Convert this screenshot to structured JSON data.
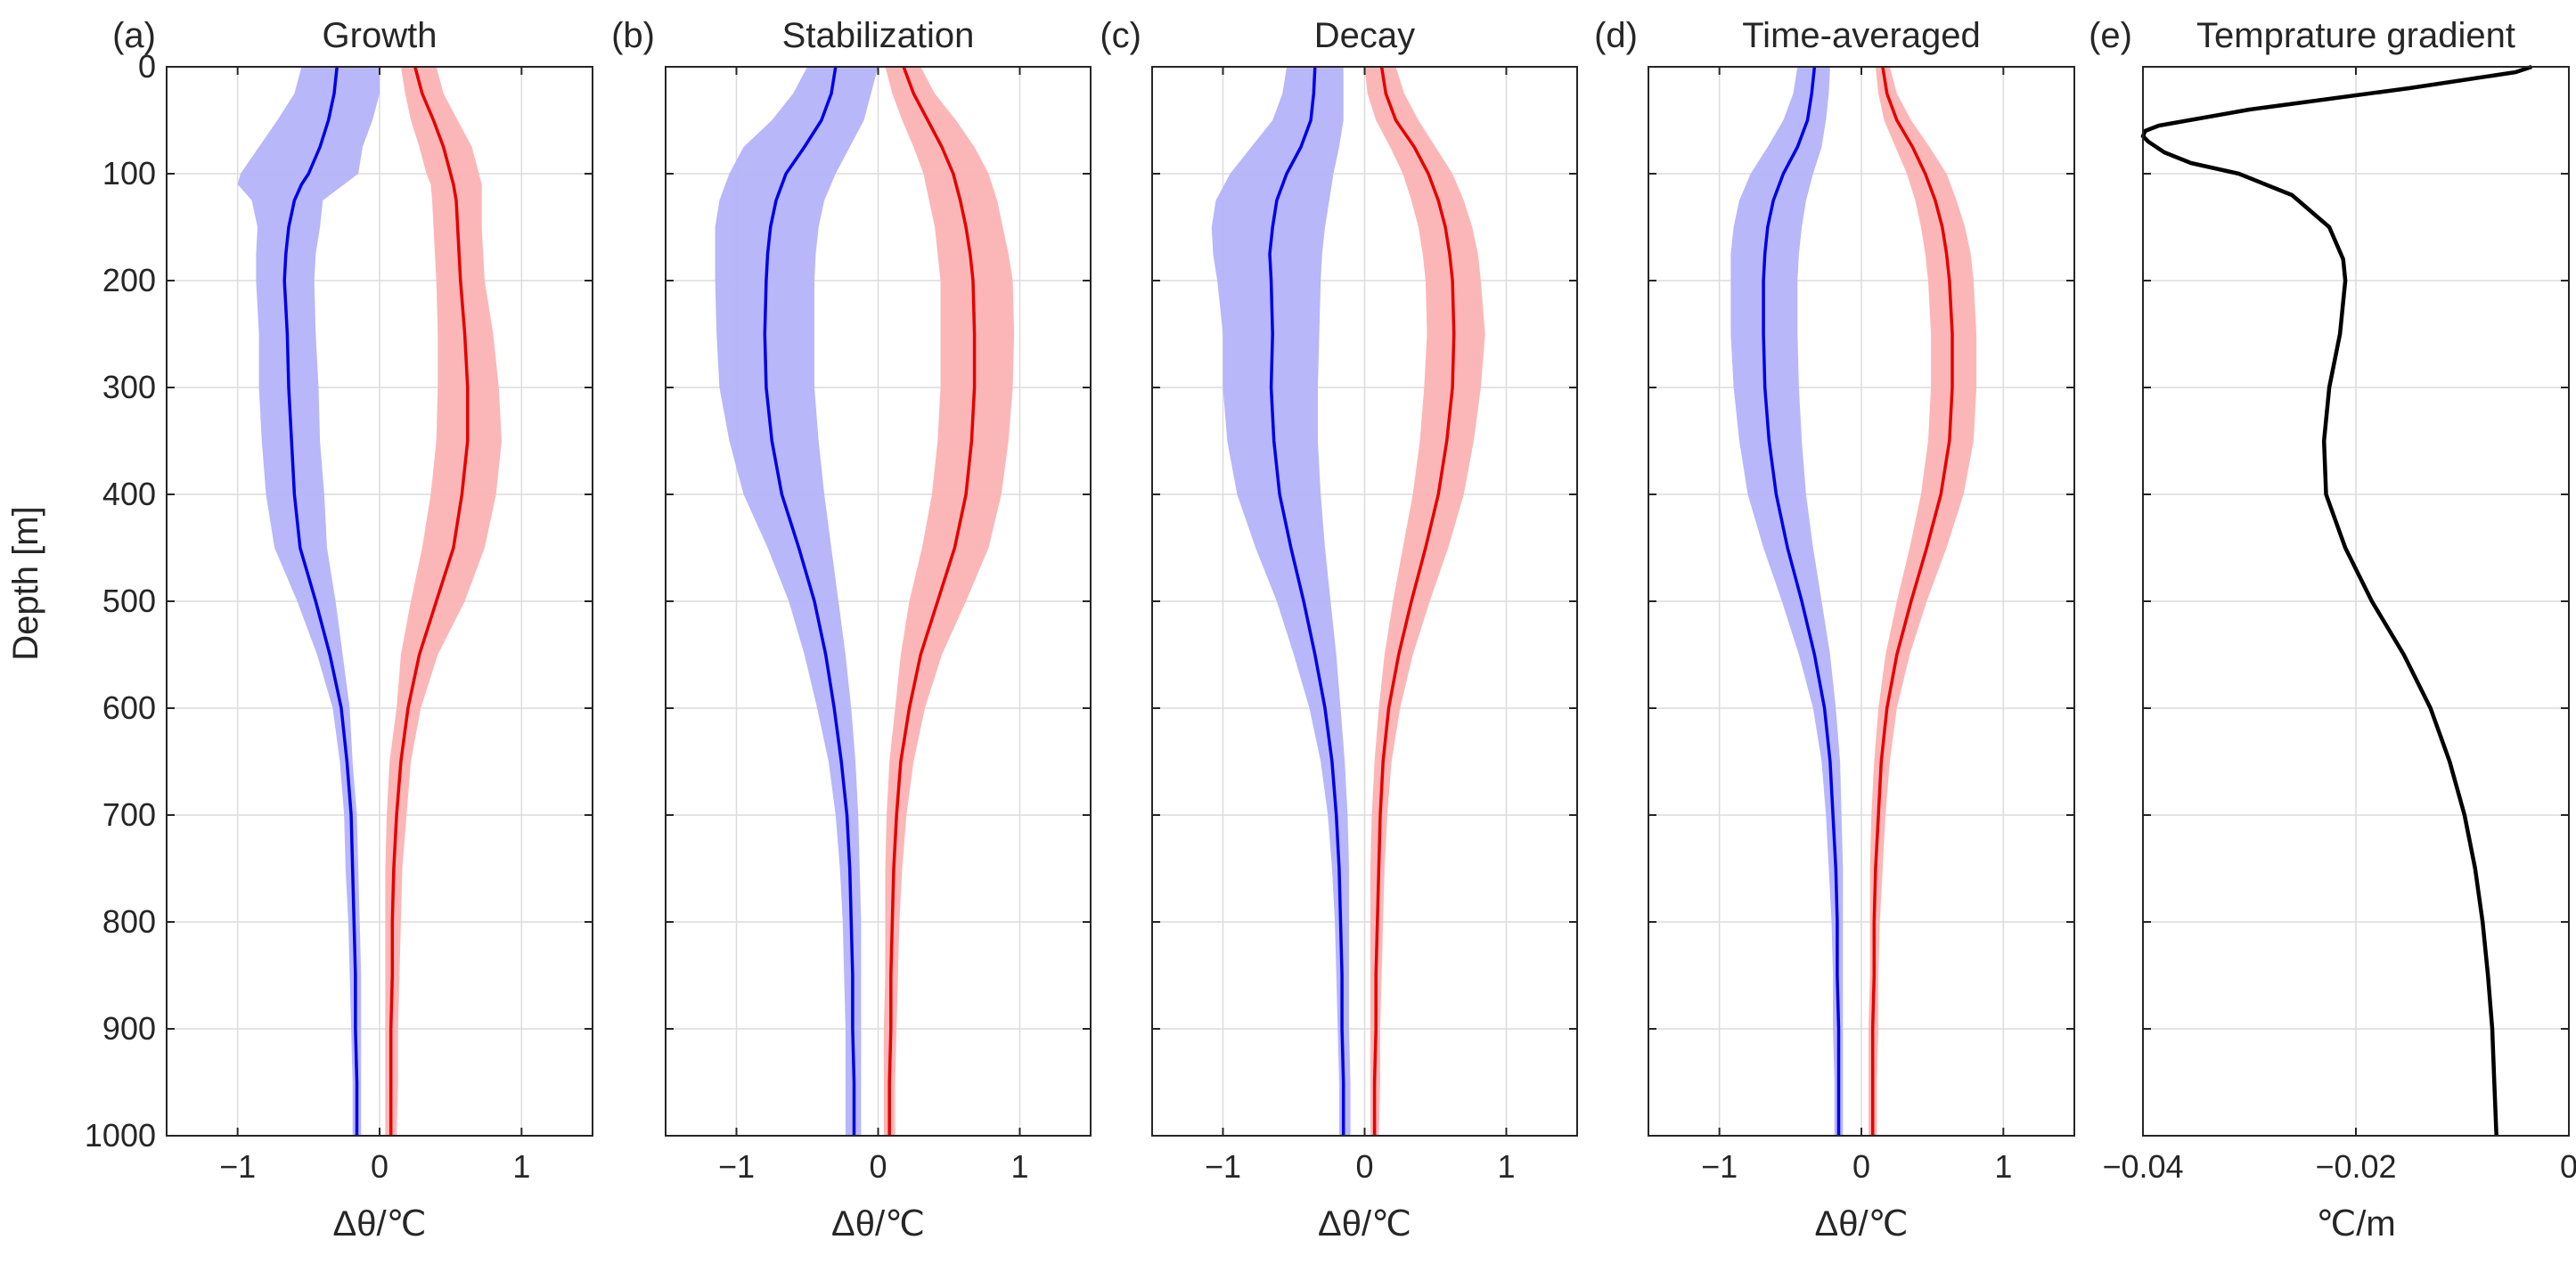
{
  "figure": {
    "ylabel": "Depth [m]",
    "y_ticks": [
      "0",
      "100",
      "200",
      "300",
      "400",
      "500",
      "600",
      "700",
      "800",
      "900",
      "1000"
    ],
    "anomaly_x_ticks": [
      "−1",
      "0",
      "1"
    ],
    "gradient_x_ticks": [
      "−0.04",
      "−0.02",
      "0"
    ],
    "colors": {
      "cold_line": "#0000e6",
      "cold_band": "#b3b3fa",
      "warm_line": "#e60000",
      "warm_band": "#fbb3b3",
      "gradient_line": "#000000"
    }
  },
  "chart_data": [
    {
      "type": "line",
      "panel": "(a)",
      "title": "Growth",
      "xlabel": "Δθ/℃",
      "ylabel": "Depth [m]",
      "xlim": [
        -1.5,
        1.5
      ],
      "ylim": [
        1000,
        0
      ],
      "y_reversed": true,
      "grid": true,
      "depth": [
        0,
        25,
        50,
        75,
        100,
        110,
        125,
        150,
        175,
        200,
        250,
        300,
        350,
        400,
        450,
        500,
        550,
        600,
        650,
        700,
        750,
        800,
        850,
        900,
        950,
        1000
      ],
      "series": [
        {
          "values": [
            -0.3,
            -0.32,
            -0.36,
            -0.42,
            -0.5,
            -0.55,
            -0.6,
            -0.64,
            -0.66,
            -0.67,
            -0.65,
            -0.64,
            -0.62,
            -0.6,
            -0.56,
            -0.45,
            -0.35,
            -0.27,
            -0.23,
            -0.2,
            -0.19,
            -0.18,
            -0.17,
            -0.17,
            -0.16,
            -0.16
          ],
          "band_low": [
            -0.55,
            -0.6,
            -0.72,
            -0.85,
            -0.98,
            -1.0,
            -0.9,
            -0.86,
            -0.87,
            -0.87,
            -0.85,
            -0.85,
            -0.83,
            -0.8,
            -0.74,
            -0.58,
            -0.44,
            -0.33,
            -0.28,
            -0.25,
            -0.24,
            -0.22,
            -0.21,
            -0.2,
            -0.19,
            -0.19
          ],
          "band_high": [
            0.0,
            0.0,
            -0.05,
            -0.12,
            -0.15,
            -0.25,
            -0.4,
            -0.42,
            -0.45,
            -0.46,
            -0.45,
            -0.43,
            -0.42,
            -0.39,
            -0.37,
            -0.31,
            -0.26,
            -0.21,
            -0.19,
            -0.16,
            -0.15,
            -0.14,
            -0.13,
            -0.13,
            -0.13,
            -0.13
          ]
        },
        {
          "values": [
            0.25,
            0.3,
            0.38,
            0.45,
            0.5,
            0.52,
            0.54,
            0.55,
            0.56,
            0.57,
            0.6,
            0.62,
            0.62,
            0.58,
            0.52,
            0.4,
            0.28,
            0.2,
            0.15,
            0.12,
            0.1,
            0.09,
            0.09,
            0.08,
            0.08,
            0.08
          ],
          "band_low": [
            0.15,
            0.18,
            0.22,
            0.28,
            0.33,
            0.36,
            0.37,
            0.38,
            0.39,
            0.4,
            0.41,
            0.41,
            0.4,
            0.36,
            0.3,
            0.22,
            0.15,
            0.12,
            0.07,
            0.05,
            0.04,
            0.04,
            0.04,
            0.04,
            0.04,
            0.04
          ],
          "band_high": [
            0.4,
            0.45,
            0.55,
            0.65,
            0.7,
            0.72,
            0.72,
            0.72,
            0.73,
            0.74,
            0.8,
            0.84,
            0.86,
            0.82,
            0.74,
            0.6,
            0.41,
            0.29,
            0.22,
            0.19,
            0.16,
            0.15,
            0.14,
            0.13,
            0.13,
            0.12
          ]
        }
      ]
    },
    {
      "type": "line",
      "panel": "(b)",
      "title": "Stabilization",
      "xlabel": "Δθ/℃",
      "ylabel": "",
      "xlim": [
        -1.5,
        1.5
      ],
      "ylim": [
        1000,
        0
      ],
      "y_reversed": true,
      "grid": true,
      "depth": [
        0,
        25,
        50,
        75,
        100,
        125,
        150,
        175,
        200,
        250,
        300,
        350,
        400,
        450,
        500,
        550,
        600,
        650,
        700,
        750,
        800,
        850,
        900,
        950,
        1000
      ],
      "series": [
        {
          "values": [
            -0.3,
            -0.33,
            -0.4,
            -0.52,
            -0.65,
            -0.72,
            -0.76,
            -0.78,
            -0.79,
            -0.8,
            -0.79,
            -0.75,
            -0.68,
            -0.56,
            -0.45,
            -0.37,
            -0.31,
            -0.26,
            -0.22,
            -0.2,
            -0.19,
            -0.18,
            -0.18,
            -0.17,
            -0.17
          ],
          "band_low": [
            -0.5,
            -0.6,
            -0.75,
            -0.95,
            -1.05,
            -1.12,
            -1.15,
            -1.15,
            -1.15,
            -1.14,
            -1.12,
            -1.05,
            -0.95,
            -0.78,
            -0.63,
            -0.52,
            -0.43,
            -0.35,
            -0.3,
            -0.27,
            -0.25,
            -0.24,
            -0.23,
            -0.23,
            -0.23
          ],
          "band_high": [
            0.0,
            -0.05,
            -0.1,
            -0.2,
            -0.3,
            -0.38,
            -0.42,
            -0.44,
            -0.45,
            -0.45,
            -0.45,
            -0.42,
            -0.38,
            -0.33,
            -0.28,
            -0.23,
            -0.19,
            -0.16,
            -0.14,
            -0.13,
            -0.12,
            -0.12,
            -0.12,
            -0.12,
            -0.12
          ]
        },
        {
          "values": [
            0.18,
            0.25,
            0.35,
            0.45,
            0.53,
            0.58,
            0.62,
            0.65,
            0.67,
            0.68,
            0.68,
            0.66,
            0.62,
            0.54,
            0.42,
            0.3,
            0.22,
            0.16,
            0.13,
            0.11,
            0.1,
            0.09,
            0.09,
            0.08,
            0.08
          ],
          "band_low": [
            0.05,
            0.1,
            0.17,
            0.25,
            0.32,
            0.36,
            0.4,
            0.42,
            0.44,
            0.44,
            0.44,
            0.42,
            0.38,
            0.31,
            0.22,
            0.16,
            0.12,
            0.08,
            0.06,
            0.05,
            0.05,
            0.05,
            0.04,
            0.04,
            0.04
          ],
          "band_high": [
            0.3,
            0.4,
            0.55,
            0.68,
            0.78,
            0.84,
            0.88,
            0.92,
            0.95,
            0.96,
            0.95,
            0.92,
            0.87,
            0.78,
            0.62,
            0.45,
            0.33,
            0.25,
            0.2,
            0.17,
            0.15,
            0.14,
            0.13,
            0.12,
            0.12
          ]
        }
      ]
    },
    {
      "type": "line",
      "panel": "(c)",
      "title": "Decay",
      "xlabel": "Δθ/℃",
      "ylabel": "",
      "xlim": [
        -1.5,
        1.5
      ],
      "ylim": [
        1000,
        0
      ],
      "y_reversed": true,
      "grid": true,
      "depth": [
        0,
        25,
        50,
        75,
        100,
        125,
        150,
        175,
        200,
        250,
        300,
        350,
        400,
        450,
        500,
        550,
        600,
        650,
        700,
        750,
        800,
        850,
        900,
        950,
        1000
      ],
      "series": [
        {
          "values": [
            -0.35,
            -0.36,
            -0.38,
            -0.45,
            -0.55,
            -0.62,
            -0.65,
            -0.67,
            -0.66,
            -0.65,
            -0.66,
            -0.64,
            -0.6,
            -0.52,
            -0.43,
            -0.35,
            -0.28,
            -0.23,
            -0.2,
            -0.18,
            -0.17,
            -0.16,
            -0.16,
            -0.15,
            -0.15
          ],
          "band_low": [
            -0.55,
            -0.58,
            -0.65,
            -0.8,
            -0.95,
            -1.05,
            -1.08,
            -1.07,
            -1.04,
            -1.0,
            -1.0,
            -0.97,
            -0.9,
            -0.77,
            -0.62,
            -0.5,
            -0.39,
            -0.31,
            -0.26,
            -0.23,
            -0.21,
            -0.2,
            -0.19,
            -0.18,
            -0.18
          ],
          "band_high": [
            -0.15,
            -0.15,
            -0.15,
            -0.18,
            -0.22,
            -0.25,
            -0.28,
            -0.3,
            -0.31,
            -0.32,
            -0.33,
            -0.33,
            -0.31,
            -0.28,
            -0.24,
            -0.2,
            -0.17,
            -0.14,
            -0.12,
            -0.11,
            -0.11,
            -0.11,
            -0.11,
            -0.1,
            -0.1
          ],
          "_note": "decay cold band"
        },
        {
          "values": [
            0.12,
            0.15,
            0.22,
            0.35,
            0.45,
            0.52,
            0.57,
            0.6,
            0.62,
            0.63,
            0.62,
            0.58,
            0.52,
            0.43,
            0.33,
            0.24,
            0.17,
            0.13,
            0.11,
            0.1,
            0.09,
            0.08,
            0.08,
            0.07,
            0.07
          ],
          "band_low": [
            0.0,
            0.02,
            0.08,
            0.18,
            0.27,
            0.33,
            0.38,
            0.41,
            0.43,
            0.44,
            0.42,
            0.39,
            0.34,
            0.27,
            0.2,
            0.14,
            0.1,
            0.07,
            0.05,
            0.04,
            0.04,
            0.04,
            0.04,
            0.04,
            0.04
          ],
          "band_high": [
            0.22,
            0.28,
            0.38,
            0.5,
            0.62,
            0.7,
            0.76,
            0.8,
            0.82,
            0.85,
            0.82,
            0.77,
            0.7,
            0.59,
            0.46,
            0.34,
            0.25,
            0.19,
            0.16,
            0.14,
            0.13,
            0.12,
            0.11,
            0.11,
            0.1
          ]
        }
      ]
    },
    {
      "type": "line",
      "panel": "(d)",
      "title": "Time-averaged",
      "xlabel": "Δθ/℃",
      "ylabel": "",
      "xlim": [
        -1.5,
        1.5
      ],
      "ylim": [
        1000,
        0
      ],
      "y_reversed": true,
      "grid": true,
      "depth": [
        0,
        25,
        50,
        75,
        100,
        125,
        150,
        175,
        200,
        250,
        300,
        350,
        400,
        450,
        500,
        550,
        600,
        650,
        700,
        750,
        800,
        850,
        900,
        950,
        1000
      ],
      "series": [
        {
          "values": [
            -0.33,
            -0.35,
            -0.38,
            -0.45,
            -0.55,
            -0.62,
            -0.66,
            -0.68,
            -0.69,
            -0.69,
            -0.68,
            -0.65,
            -0.6,
            -0.52,
            -0.42,
            -0.33,
            -0.26,
            -0.22,
            -0.2,
            -0.18,
            -0.17,
            -0.17,
            -0.16,
            -0.16,
            -0.16
          ],
          "band_low": [
            -0.45,
            -0.48,
            -0.55,
            -0.66,
            -0.78,
            -0.86,
            -0.9,
            -0.92,
            -0.92,
            -0.92,
            -0.9,
            -0.86,
            -0.8,
            -0.69,
            -0.56,
            -0.44,
            -0.34,
            -0.28,
            -0.25,
            -0.23,
            -0.21,
            -0.2,
            -0.2,
            -0.19,
            -0.19
          ],
          "band_high": [
            -0.22,
            -0.23,
            -0.25,
            -0.28,
            -0.34,
            -0.39,
            -0.42,
            -0.44,
            -0.45,
            -0.45,
            -0.44,
            -0.42,
            -0.39,
            -0.34,
            -0.28,
            -0.22,
            -0.18,
            -0.15,
            -0.14,
            -0.13,
            -0.13,
            -0.13,
            -0.13,
            -0.13,
            -0.13
          ]
        },
        {
          "values": [
            0.15,
            0.18,
            0.25,
            0.36,
            0.45,
            0.52,
            0.57,
            0.6,
            0.62,
            0.64,
            0.64,
            0.62,
            0.56,
            0.46,
            0.35,
            0.25,
            0.18,
            0.14,
            0.12,
            0.1,
            0.09,
            0.09,
            0.08,
            0.08,
            0.08
          ],
          "band_low": [
            0.1,
            0.12,
            0.16,
            0.24,
            0.32,
            0.38,
            0.42,
            0.45,
            0.47,
            0.49,
            0.49,
            0.47,
            0.42,
            0.34,
            0.25,
            0.17,
            0.12,
            0.09,
            0.07,
            0.06,
            0.06,
            0.06,
            0.05,
            0.05,
            0.05
          ],
          "band_high": [
            0.2,
            0.25,
            0.35,
            0.48,
            0.6,
            0.67,
            0.73,
            0.77,
            0.79,
            0.81,
            0.81,
            0.79,
            0.72,
            0.6,
            0.46,
            0.34,
            0.25,
            0.2,
            0.17,
            0.15,
            0.13,
            0.12,
            0.12,
            0.11,
            0.11
          ]
        }
      ]
    },
    {
      "type": "line",
      "panel": "(e)",
      "title": "Temprature gradient",
      "xlabel": "℃/m",
      "ylabel": "",
      "xlim": [
        -0.04,
        0
      ],
      "ylim": [
        1000,
        0
      ],
      "y_reversed": true,
      "grid": true,
      "depth": [
        0,
        5,
        20,
        40,
        55,
        60,
        65,
        70,
        80,
        90,
        100,
        120,
        150,
        180,
        200,
        250,
        300,
        350,
        400,
        450,
        500,
        550,
        600,
        650,
        700,
        750,
        800,
        850,
        900,
        950,
        1000
      ],
      "series": [
        {
          "values": [
            -0.0035,
            -0.005,
            -0.015,
            -0.03,
            -0.0385,
            -0.0398,
            -0.04,
            -0.0395,
            -0.038,
            -0.0355,
            -0.031,
            -0.026,
            -0.0225,
            -0.0212,
            -0.021,
            -0.0215,
            -0.0225,
            -0.023,
            -0.0228,
            -0.021,
            -0.0185,
            -0.0155,
            -0.013,
            -0.0112,
            -0.0098,
            -0.0088,
            -0.0081,
            -0.0076,
            -0.0072,
            -0.007,
            -0.0068
          ]
        }
      ]
    }
  ]
}
